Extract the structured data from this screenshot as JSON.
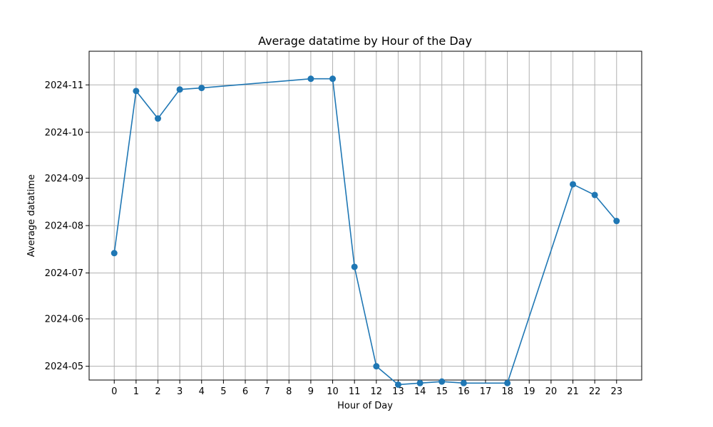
{
  "chart_data": {
    "type": "line",
    "title": "Average datatime by Hour of the Day",
    "xlabel": "Hour of Day",
    "ylabel": "Average datatime",
    "grid": true,
    "x_ticks": [
      0,
      1,
      2,
      3,
      4,
      5,
      6,
      7,
      8,
      9,
      10,
      11,
      12,
      13,
      14,
      15,
      16,
      17,
      18,
      19,
      20,
      21,
      22,
      23
    ],
    "y_ticks": [
      "2024-05-01",
      "2024-06-01",
      "2024-07-01",
      "2024-08-01",
      "2024-09-01",
      "2024-10-01",
      "2024-11-01"
    ],
    "y_tick_labels": [
      "2024-05",
      "2024-06",
      "2024-07",
      "2024-08",
      "2024-09",
      "2024-10",
      "2024-11"
    ],
    "xlim": [
      -1.15,
      24.15
    ],
    "ylim": [
      "2024-04-22",
      "2024-11-23"
    ],
    "colors": {
      "series": "#1f77b4"
    },
    "series": [
      {
        "points": [
          {
            "x": 0,
            "y": "2024-07-14"
          },
          {
            "x": 1,
            "y": "2024-10-28"
          },
          {
            "x": 2,
            "y": "2024-10-10"
          },
          {
            "x": 3,
            "y": "2024-10-29"
          },
          {
            "x": 4,
            "y": "2024-10-30"
          },
          {
            "x": 9,
            "y": "2024-11-05"
          },
          {
            "x": 10,
            "y": "2024-11-05"
          },
          {
            "x": 11,
            "y": "2024-07-05"
          },
          {
            "x": 12,
            "y": "2024-05-01"
          },
          {
            "x": 13,
            "y": "2024-04-19"
          },
          {
            "x": 14,
            "y": "2024-04-20"
          },
          {
            "x": 15,
            "y": "2024-04-21"
          },
          {
            "x": 16,
            "y": "2024-04-20"
          },
          {
            "x": 18,
            "y": "2024-04-20"
          },
          {
            "x": 21,
            "y": "2024-08-28"
          },
          {
            "x": 22,
            "y": "2024-08-21"
          },
          {
            "x": 23,
            "y": "2024-08-04"
          }
        ]
      }
    ]
  }
}
